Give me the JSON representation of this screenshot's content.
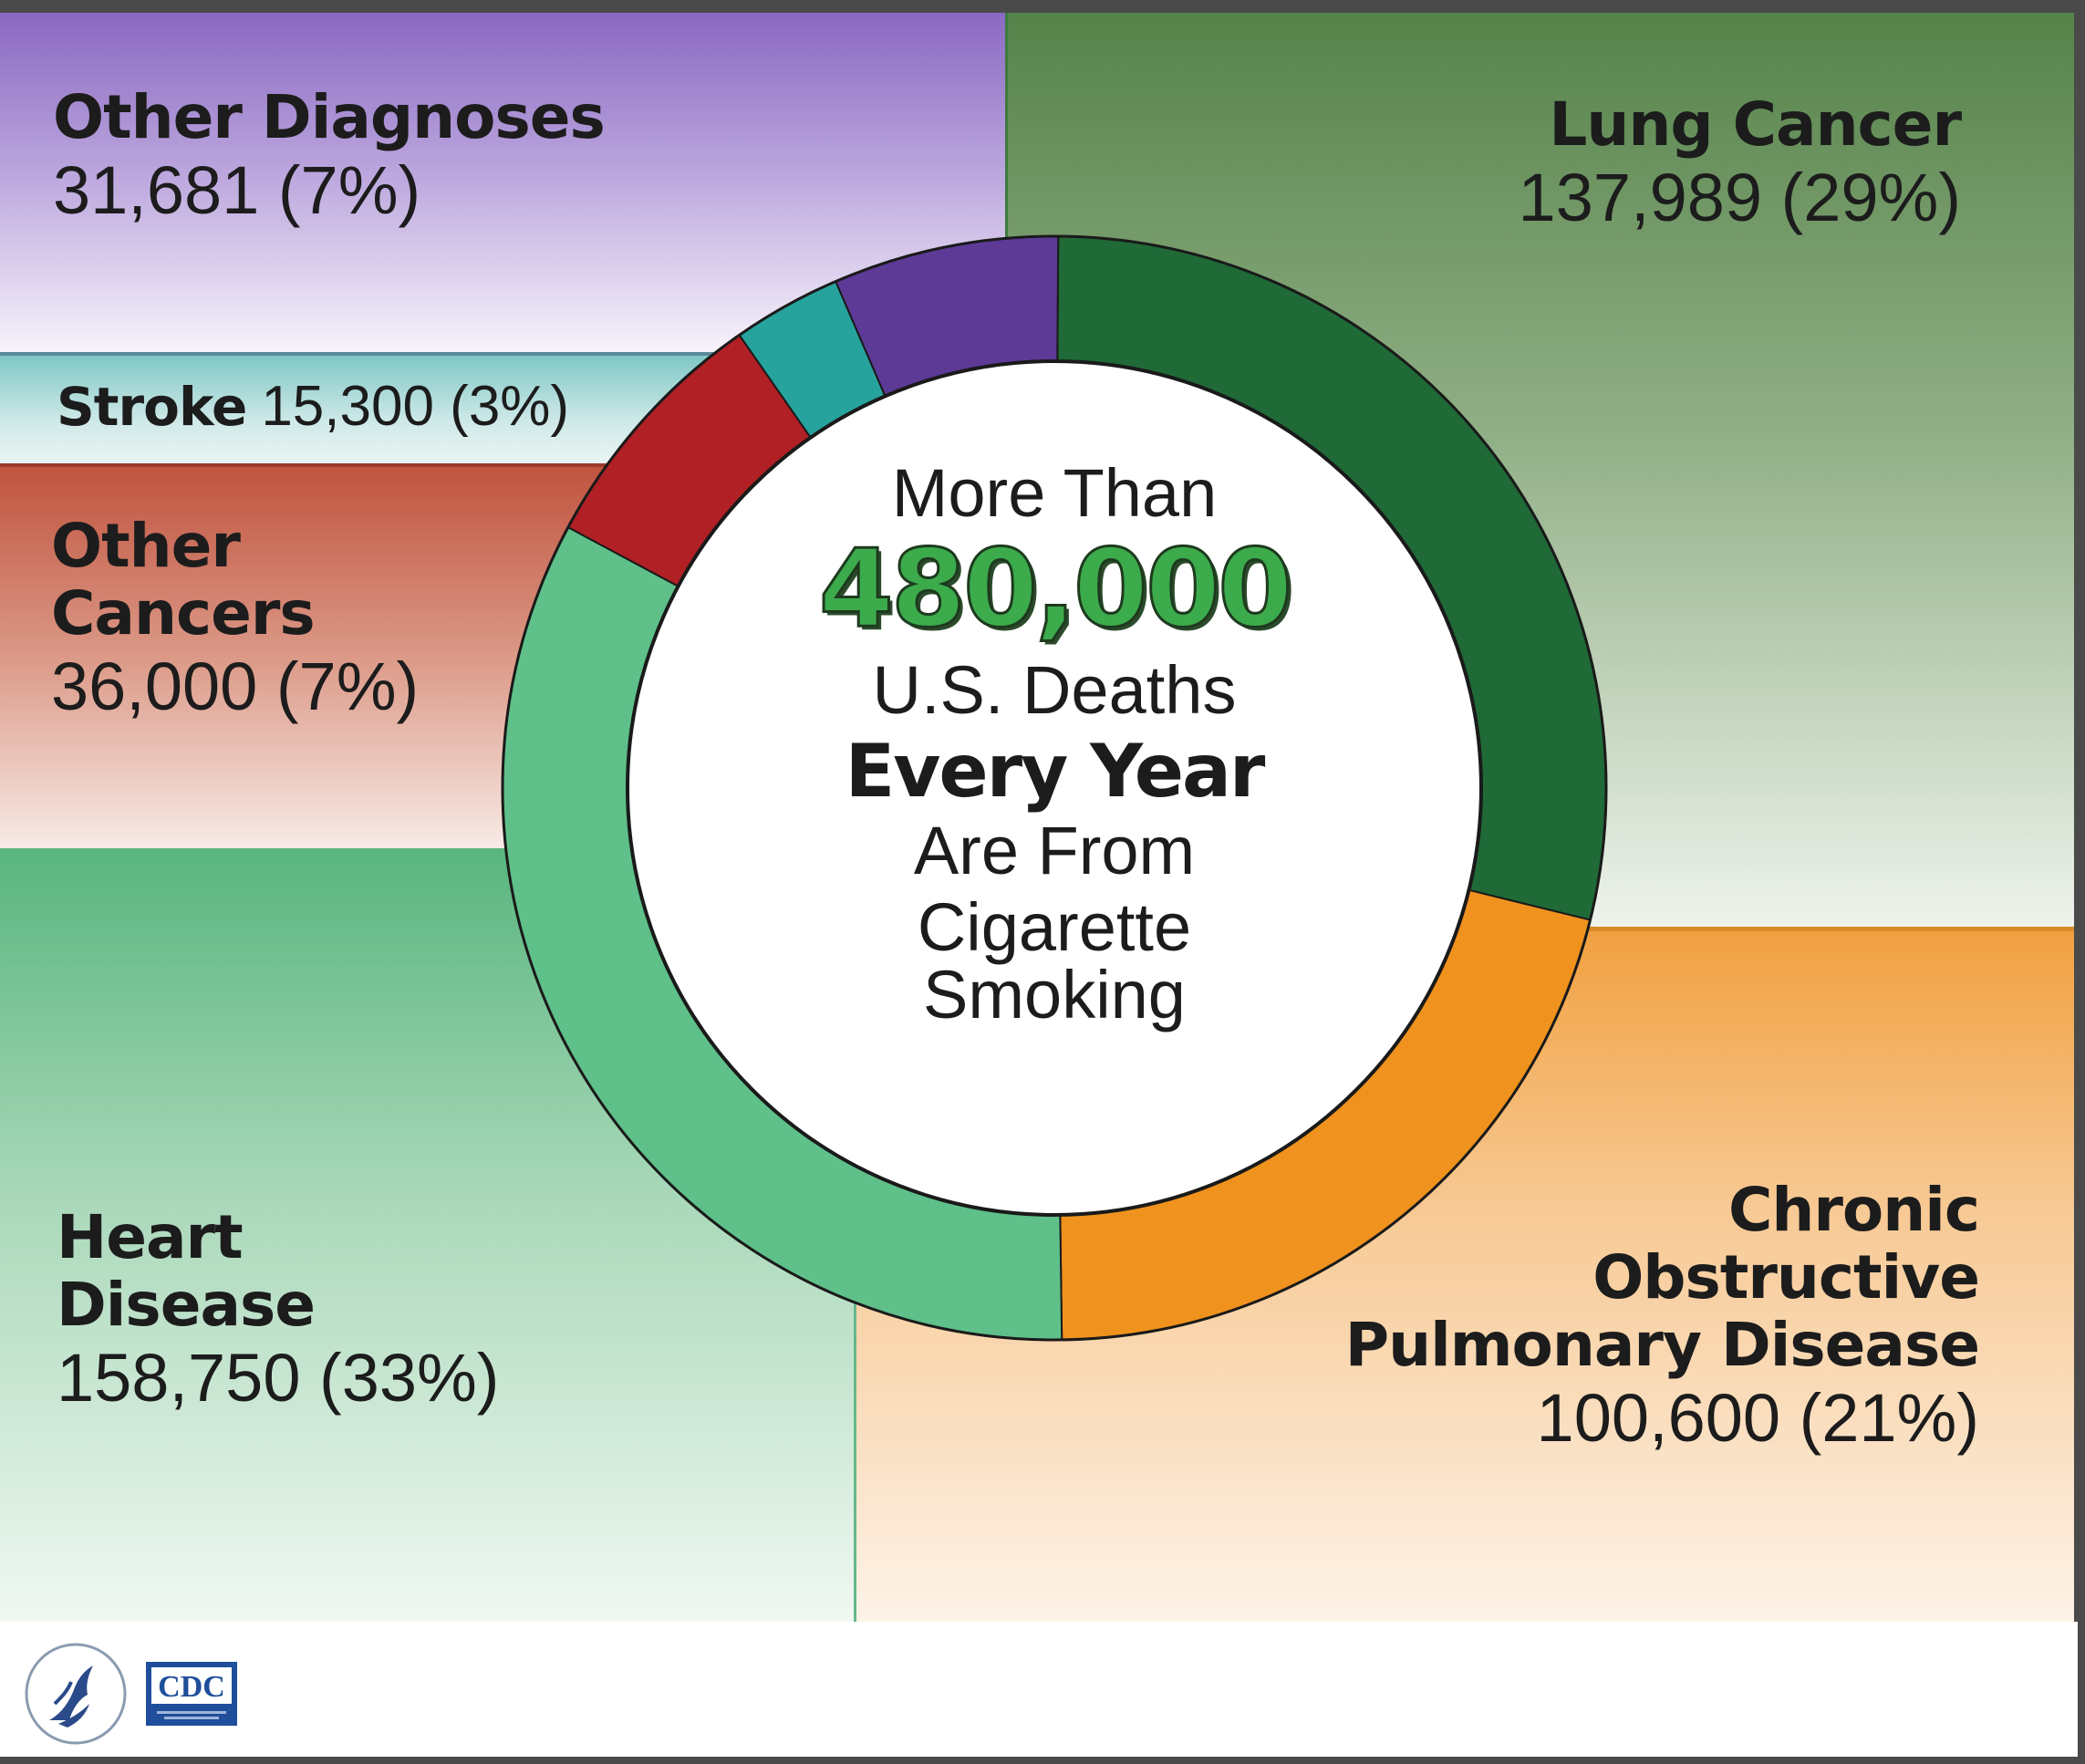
{
  "chart_data": {
    "type": "pie",
    "title": "",
    "center": {
      "line1": "More Than",
      "number": "480,000",
      "line2": "U.S. Deaths",
      "line3": "Every Year",
      "line4": "Are From",
      "line5": "Cigarette Smoking"
    },
    "slices": [
      {
        "name": "Lung Cancer",
        "value": 137989,
        "value_label": "137,989 (29%)",
        "percent": 29,
        "color": "#1f6a37"
      },
      {
        "name": "Chronic Obstructive Pulmonary Disease",
        "name_lines": [
          "Chronic",
          "Obstructive",
          "Pulmonary Disease"
        ],
        "value": 100600,
        "value_label": "100,600 (21%)",
        "percent": 21,
        "color": "#f0921e"
      },
      {
        "name": "Heart Disease",
        "name_lines": [
          "Heart",
          "Disease"
        ],
        "value": 158750,
        "value_label": "158,750 (33%)",
        "percent": 33,
        "color": "#5fc08a"
      },
      {
        "name": "Other Cancers",
        "name_lines": [
          "Other",
          "Cancers"
        ],
        "value": 36000,
        "value_label": "36,000 (7%)",
        "percent": 7,
        "color": "#b02025"
      },
      {
        "name": "Stroke",
        "value": 15300,
        "value_label": "15,300 (3%)",
        "percent": 3,
        "color": "#27a39e"
      },
      {
        "name": "Other Diagnoses",
        "value": 31681,
        "value_label": "31,681 (7%)",
        "percent": 7,
        "color": "#5c3a96"
      }
    ]
  },
  "footer": {
    "logo_left": "hhs-eagle-icon",
    "logo_right_text": "CDC"
  }
}
